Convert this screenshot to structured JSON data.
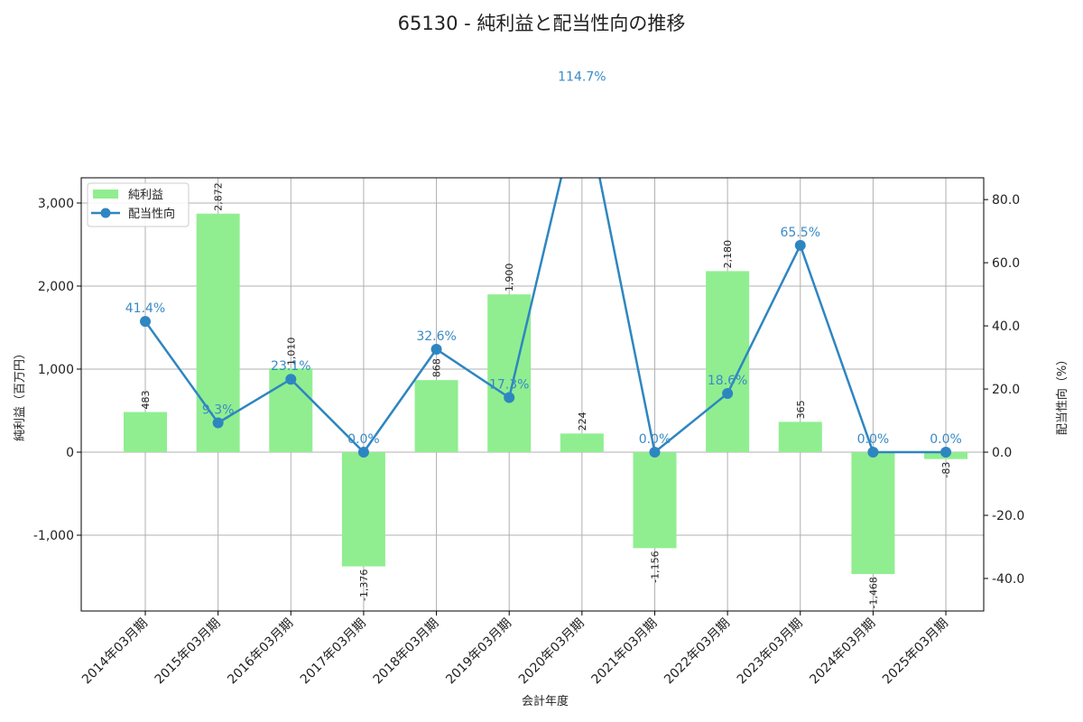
{
  "chart_data": {
    "type": "bar+line",
    "title": "65130 - 純利益と配当性向の推移",
    "xlabel": "会計年度",
    "ylabel": "純利益（百万円）",
    "y2label": "配当性向（%）",
    "categories": [
      "2014年03月期",
      "2015年03月期",
      "2016年03月期",
      "2017年03月期",
      "2018年03月期",
      "2019年03月期",
      "2020年03月期",
      "2021年03月期",
      "2022年03月期",
      "2023年03月期",
      "2024年03月期",
      "2025年03月期"
    ],
    "series": [
      {
        "name": "純利益",
        "type": "bar",
        "axis": "left",
        "color": "#90ee90",
        "values": [
          483,
          2872,
          1010,
          -1376,
          868,
          1900,
          224,
          -1156,
          2180,
          365,
          -1468,
          -83
        ],
        "labels": [
          "483",
          "2,872",
          "1,010",
          "-1,376",
          "868",
          "1,900",
          "224",
          "-1,156",
          "2,180",
          "365",
          "-1,468",
          "-83"
        ]
      },
      {
        "name": "配当性向",
        "type": "line",
        "axis": "right",
        "color": "#2e86c1",
        "values": [
          41.4,
          9.3,
          23.1,
          0.0,
          32.6,
          17.3,
          114.7,
          0.0,
          18.6,
          65.5,
          0.0,
          0.0
        ],
        "labels": [
          "41.4%",
          "9.3%",
          "23.1%",
          "0.0%",
          "32.6%",
          "17.3%",
          "114.7%",
          "0.0%",
          "18.6%",
          "65.5%",
          "0.0%",
          "0.0%"
        ]
      }
    ],
    "ylim": [
      -1913,
      3304
    ],
    "y2lim": [
      -50.3,
      86.9
    ],
    "yticks": [
      -1000,
      0,
      1000,
      2000,
      3000
    ],
    "ytick_labels": [
      "-1,000",
      "0",
      "1,000",
      "2,000",
      "3,000"
    ],
    "y2ticks": [
      -40,
      -20,
      0,
      20,
      40,
      60,
      80
    ],
    "y2tick_labels": [
      "-40.0",
      "-20.0",
      "0.0",
      "20.0",
      "40.0",
      "60.0",
      "80.0"
    ],
    "grid": true,
    "legend_position": "upper left"
  }
}
